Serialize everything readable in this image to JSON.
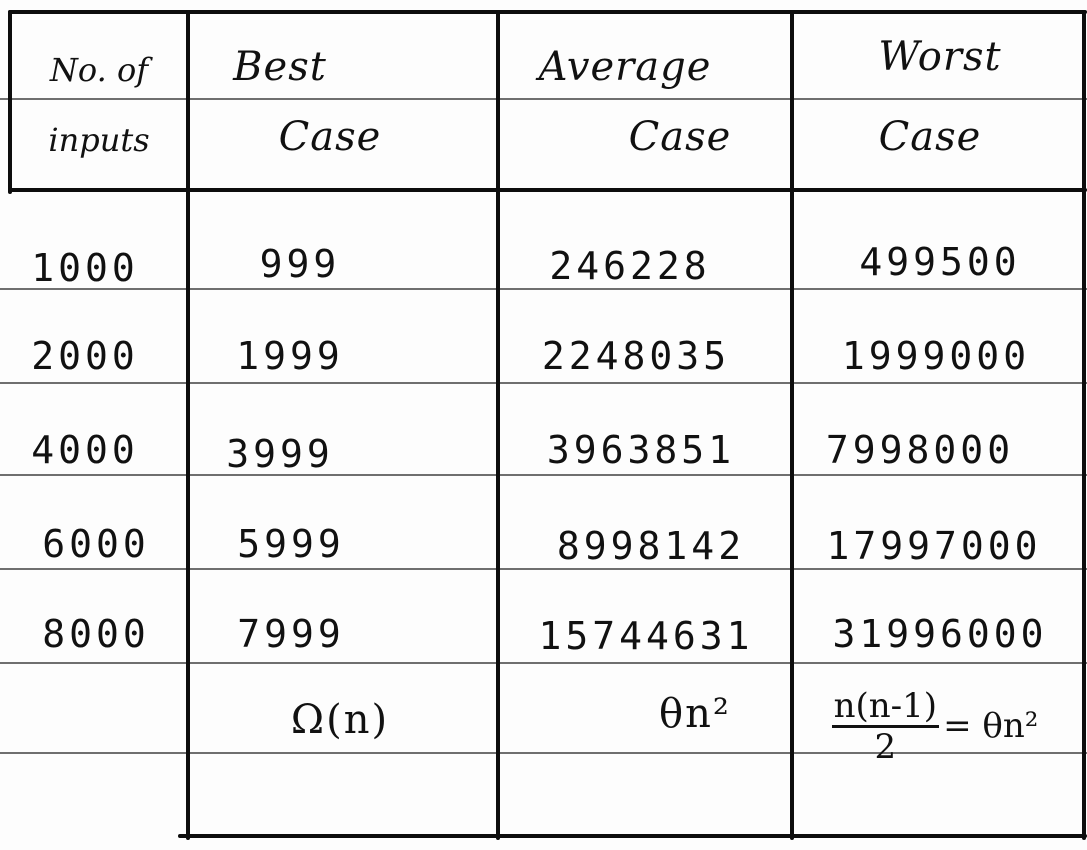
{
  "table": {
    "headers": {
      "inputs": [
        "No. of",
        "inputs"
      ],
      "best": [
        "Best",
        "Case"
      ],
      "average": [
        "Average",
        "Case"
      ],
      "worst": [
        "Worst",
        "Case"
      ]
    },
    "rows": [
      {
        "inputs": "1000",
        "best": "999",
        "average": "246228",
        "worst": "499500"
      },
      {
        "inputs": "2000",
        "best": "1999",
        "average": "2248035",
        "worst": "1999000"
      },
      {
        "inputs": "4000",
        "best": "3999",
        "average": "3963851",
        "worst": "7998000"
      },
      {
        "inputs": "6000",
        "best": "5999",
        "average": "8998142",
        "worst": "17997000"
      },
      {
        "inputs": "8000",
        "best": "7999",
        "average": "15744631",
        "worst": "31996000"
      }
    ],
    "complexity": {
      "best": "Ω(n)",
      "average": "θn²",
      "worst_numerator": "n(n-1)",
      "worst_denominator": "2",
      "worst_result": "= θn²"
    }
  }
}
